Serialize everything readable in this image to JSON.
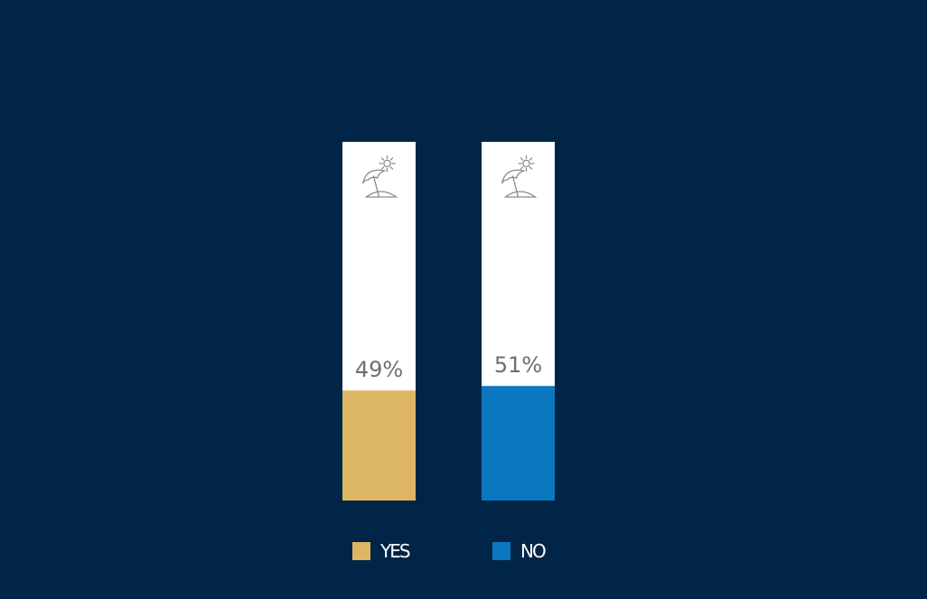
{
  "chart_data": {
    "type": "bar",
    "categories": [
      "YES",
      "NO"
    ],
    "values": [
      49,
      51
    ],
    "value_labels": [
      "49%",
      "51%"
    ],
    "ylim": [
      0,
      100
    ],
    "icon": "beach-umbrella-icon",
    "colors": [
      "#DDB665",
      "#0C77C1"
    ],
    "background": "#002546",
    "track_color": "#FFFFFF",
    "legend": {
      "placement": "bottom",
      "entries": [
        "YES",
        "NO"
      ]
    }
  }
}
